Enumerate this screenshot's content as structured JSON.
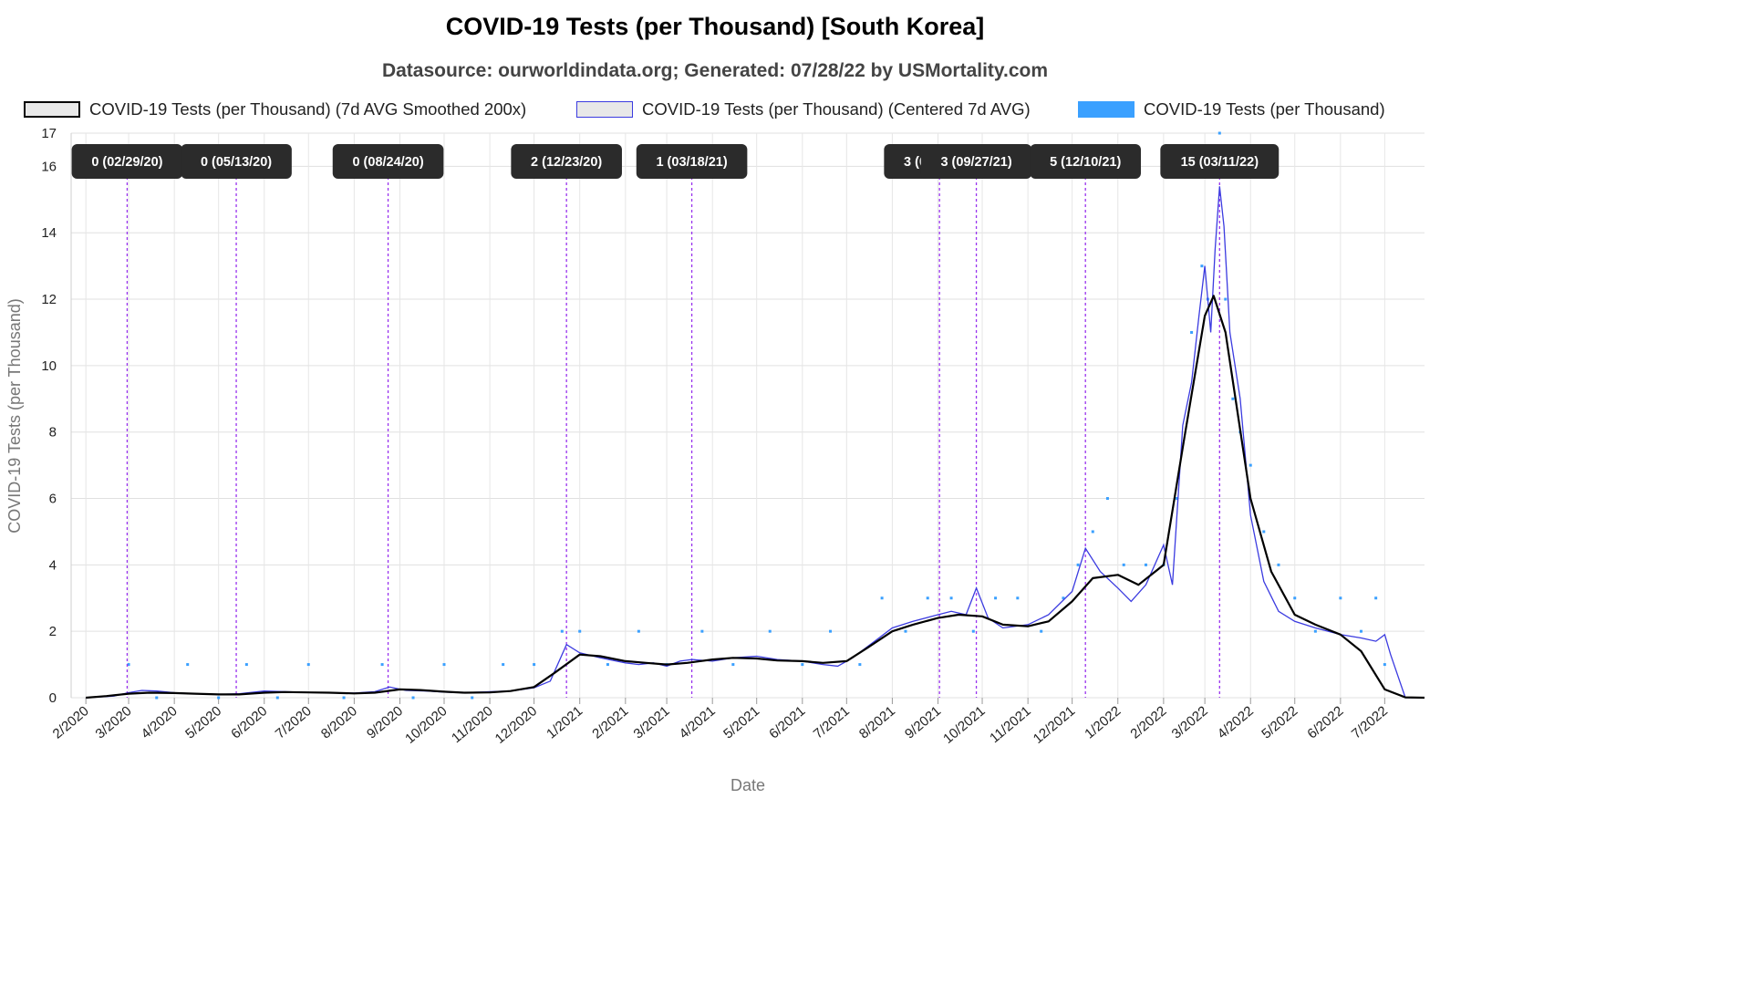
{
  "title": "COVID-19 Tests (per Thousand) [South Korea]",
  "subtitle": "Datasource: ourworldindata.org; Generated: 07/28/22 by USMortality.com",
  "legend": [
    {
      "label": "COVID-19 Tests (per Thousand) (7d AVG Smoothed 200x)",
      "swatch_fill": "#e8e8e8",
      "swatch_border": "#000000"
    },
    {
      "label": "COVID-19 Tests (per Thousand) (Centered 7d AVG)",
      "swatch_fill": "#e8e8e8",
      "swatch_border": "#3b3be0"
    },
    {
      "label": "COVID-19 Tests (per Thousand)",
      "swatch_fill": "#3aa0ff",
      "swatch_border": "#3aa0ff"
    }
  ],
  "chart_data": {
    "type": "line",
    "title": "COVID-19 Tests (per Thousand) [South Korea]",
    "xlabel": "Date",
    "ylabel": "COVID-19 Tests (per Thousand)",
    "xlim": [
      "2020-01-22",
      "2022-07-28"
    ],
    "ylim": [
      0,
      17
    ],
    "yticks": [
      0,
      2,
      4,
      6,
      8,
      10,
      12,
      14,
      16,
      17
    ],
    "xticks": [
      "2/2020",
      "3/2020",
      "4/2020",
      "5/2020",
      "6/2020",
      "7/2020",
      "8/2020",
      "9/2020",
      "10/2020",
      "11/2020",
      "12/2020",
      "1/2021",
      "2/2021",
      "3/2021",
      "4/2021",
      "5/2021",
      "6/2021",
      "7/2021",
      "8/2021",
      "9/2021",
      "10/2021",
      "11/2021",
      "12/2021",
      "1/2022",
      "2/2022",
      "3/2022",
      "4/2022",
      "5/2022",
      "6/2022",
      "7/2022"
    ],
    "grid": true,
    "legend_position": "top",
    "colors": {
      "smoothed": "#000000",
      "centered": "#3b3be0",
      "daily": "#3aa0ff",
      "annotation_line": "#9933ee",
      "annotation_box": "#2b2b2b"
    },
    "series": [
      {
        "name": "COVID-19 Tests (per Thousand) (7d AVG Smoothed 200x)",
        "x": [
          "2020-02-01",
          "2020-02-15",
          "2020-03-01",
          "2020-03-15",
          "2020-04-01",
          "2020-04-15",
          "2020-05-01",
          "2020-05-15",
          "2020-06-01",
          "2020-06-15",
          "2020-07-01",
          "2020-07-15",
          "2020-08-01",
          "2020-08-15",
          "2020-09-01",
          "2020-09-15",
          "2020-10-01",
          "2020-10-15",
          "2020-11-01",
          "2020-11-15",
          "2020-12-01",
          "2020-12-15",
          "2021-01-01",
          "2021-01-15",
          "2021-02-01",
          "2021-02-15",
          "2021-03-01",
          "2021-03-15",
          "2021-04-01",
          "2021-04-15",
          "2021-05-01",
          "2021-05-15",
          "2021-06-01",
          "2021-06-15",
          "2021-07-01",
          "2021-07-15",
          "2021-08-01",
          "2021-08-15",
          "2021-09-01",
          "2021-09-15",
          "2021-10-01",
          "2021-10-15",
          "2021-11-01",
          "2021-11-15",
          "2021-12-01",
          "2021-12-15",
          "2022-01-01",
          "2022-01-15",
          "2022-02-01",
          "2022-02-15",
          "2022-03-01",
          "2022-03-07",
          "2022-03-15",
          "2022-04-01",
          "2022-04-15",
          "2022-05-01",
          "2022-05-15",
          "2022-06-01",
          "2022-06-15",
          "2022-07-01",
          "2022-07-15",
          "2022-07-28"
        ],
        "values": [
          0.0,
          0.05,
          0.12,
          0.15,
          0.14,
          0.12,
          0.1,
          0.1,
          0.15,
          0.17,
          0.16,
          0.15,
          0.13,
          0.15,
          0.25,
          0.23,
          0.18,
          0.15,
          0.16,
          0.2,
          0.32,
          0.75,
          1.3,
          1.25,
          1.1,
          1.05,
          1.0,
          1.05,
          1.15,
          1.2,
          1.18,
          1.12,
          1.1,
          1.05,
          1.1,
          1.5,
          2.0,
          2.2,
          2.4,
          2.5,
          2.45,
          2.2,
          2.15,
          2.3,
          2.9,
          3.6,
          3.7,
          3.4,
          4.0,
          7.8,
          11.5,
          12.1,
          11.0,
          6.0,
          3.8,
          2.5,
          2.2,
          1.9,
          1.4,
          0.25,
          0.01,
          0.0
        ]
      },
      {
        "name": "COVID-19 Tests (per Thousand) (Centered 7d AVG)",
        "x": [
          "2020-02-01",
          "2020-02-20",
          "2020-03-01",
          "2020-03-10",
          "2020-03-20",
          "2020-04-01",
          "2020-04-15",
          "2020-05-01",
          "2020-05-15",
          "2020-06-01",
          "2020-06-15",
          "2020-07-01",
          "2020-07-15",
          "2020-08-01",
          "2020-08-15",
          "2020-08-25",
          "2020-09-05",
          "2020-09-20",
          "2020-10-01",
          "2020-10-15",
          "2020-11-01",
          "2020-11-15",
          "2020-12-01",
          "2020-12-12",
          "2020-12-23",
          "2021-01-01",
          "2021-01-15",
          "2021-02-01",
          "2021-02-10",
          "2021-02-20",
          "2021-03-01",
          "2021-03-10",
          "2021-03-18",
          "2021-04-01",
          "2021-04-15",
          "2021-05-01",
          "2021-05-15",
          "2021-06-01",
          "2021-06-15",
          "2021-06-25",
          "2021-07-05",
          "2021-07-20",
          "2021-08-01",
          "2021-08-15",
          "2021-09-01",
          "2021-09-10",
          "2021-09-20",
          "2021-09-27",
          "2021-10-05",
          "2021-10-15",
          "2021-11-01",
          "2021-11-15",
          "2021-12-01",
          "2021-12-10",
          "2021-12-20",
          "2022-01-01",
          "2022-01-10",
          "2022-01-20",
          "2022-02-01",
          "2022-02-07",
          "2022-02-14",
          "2022-02-20",
          "2022-02-25",
          "2022-03-01",
          "2022-03-05",
          "2022-03-08",
          "2022-03-11",
          "2022-03-14",
          "2022-03-18",
          "2022-03-25",
          "2022-04-01",
          "2022-04-10",
          "2022-04-20",
          "2022-05-01",
          "2022-05-15",
          "2022-06-01",
          "2022-06-15",
          "2022-06-25",
          "2022-07-01",
          "2022-07-05",
          "2022-07-15",
          "2022-07-28"
        ],
        "values": [
          0.0,
          0.05,
          0.15,
          0.22,
          0.2,
          0.15,
          0.12,
          0.1,
          0.12,
          0.2,
          0.18,
          0.16,
          0.15,
          0.14,
          0.18,
          0.32,
          0.22,
          0.2,
          0.17,
          0.15,
          0.18,
          0.2,
          0.3,
          0.5,
          1.6,
          1.35,
          1.2,
          1.05,
          1.0,
          1.05,
          0.95,
          1.1,
          1.15,
          1.1,
          1.2,
          1.25,
          1.15,
          1.1,
          1.0,
          0.95,
          1.2,
          1.7,
          2.1,
          2.3,
          2.5,
          2.6,
          2.5,
          3.3,
          2.4,
          2.1,
          2.2,
          2.5,
          3.2,
          4.5,
          3.8,
          3.3,
          2.9,
          3.4,
          4.6,
          3.4,
          8.2,
          9.5,
          11.5,
          13.0,
          11.0,
          13.5,
          15.4,
          14.2,
          11.0,
          9.0,
          5.5,
          3.5,
          2.6,
          2.3,
          2.1,
          1.9,
          1.8,
          1.7,
          1.9,
          1.3,
          0.0,
          0.0
        ]
      },
      {
        "name": "COVID-19 Tests (per Thousand)",
        "x": [
          "2020-03-01",
          "2020-03-20",
          "2020-04-10",
          "2020-05-01",
          "2020-05-20",
          "2020-06-10",
          "2020-07-01",
          "2020-07-25",
          "2020-08-20",
          "2020-09-10",
          "2020-10-01",
          "2020-10-20",
          "2020-11-10",
          "2020-12-01",
          "2020-12-20",
          "2021-01-01",
          "2021-01-20",
          "2021-02-10",
          "2021-03-01",
          "2021-03-25",
          "2021-04-15",
          "2021-05-10",
          "2021-06-01",
          "2021-06-20",
          "2021-07-10",
          "2021-07-25",
          "2021-08-10",
          "2021-08-25",
          "2021-09-10",
          "2021-09-25",
          "2021-10-10",
          "2021-10-25",
          "2021-11-10",
          "2021-11-25",
          "2021-12-05",
          "2021-12-15",
          "2021-12-25",
          "2022-01-05",
          "2022-01-20",
          "2022-02-01",
          "2022-02-10",
          "2022-02-20",
          "2022-02-27",
          "2022-03-03",
          "2022-03-07",
          "2022-03-11",
          "2022-03-15",
          "2022-03-20",
          "2022-03-25",
          "2022-04-01",
          "2022-04-10",
          "2022-04-20",
          "2022-05-01",
          "2022-05-15",
          "2022-06-01",
          "2022-06-15",
          "2022-06-25",
          "2022-07-01"
        ],
        "values": [
          1,
          0,
          1,
          0,
          1,
          0,
          1,
          0,
          1,
          0,
          1,
          0,
          1,
          1,
          2,
          2,
          1,
          2,
          1,
          2,
          1,
          2,
          1,
          2,
          1,
          3,
          2,
          3,
          3,
          2,
          3,
          3,
          2,
          3,
          4,
          5,
          6,
          4,
          4,
          4,
          6,
          11,
          13,
          12,
          16,
          17,
          12,
          9,
          8,
          7,
          5,
          4,
          3,
          2,
          3,
          2,
          3,
          1
        ]
      }
    ],
    "annotations": [
      {
        "x": "2020-02-29",
        "label": "0 (02/29/20)"
      },
      {
        "x": "2020-05-13",
        "label": "0 (05/13/20)"
      },
      {
        "x": "2020-08-24",
        "label": "0 (08/24/20)"
      },
      {
        "x": "2020-12-23",
        "label": "2 (12/23/20)"
      },
      {
        "x": "2021-03-18",
        "label": "1 (03/18/21)"
      },
      {
        "x": "2021-09-02",
        "label": "3 (09/02/21)"
      },
      {
        "x": "2021-09-27",
        "label": "3 (09/27/21)"
      },
      {
        "x": "2021-12-10",
        "label": "5 (12/10/21)"
      },
      {
        "x": "2022-03-11",
        "label": "15 (03/11/22)"
      }
    ]
  }
}
